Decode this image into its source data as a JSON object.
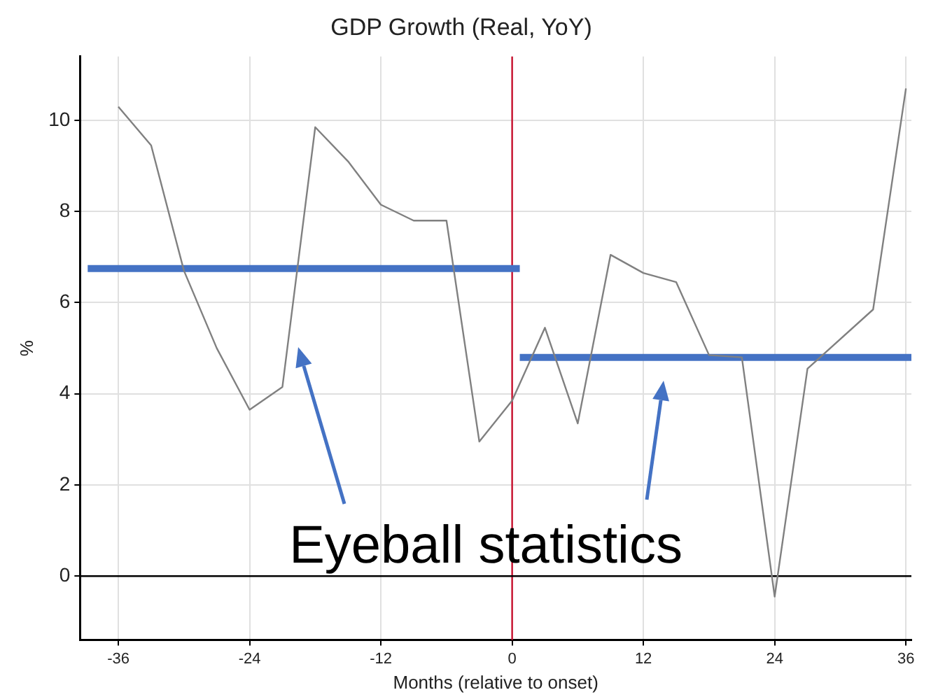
{
  "chart_data": {
    "type": "line",
    "title": "GDP Growth (Real, YoY)",
    "xlabel": "Months (relative to onset)",
    "ylabel": "%",
    "xlim": [
      -39.5,
      36.5
    ],
    "xticks": [
      -36,
      -24,
      -12,
      0,
      12,
      24,
      36
    ],
    "ylim": [
      -1.4,
      11.4
    ],
    "yticks": [
      0,
      2,
      4,
      6,
      8,
      10
    ],
    "series": [
      {
        "color": "#808080",
        "x": [
          -36,
          -33,
          -30,
          -27,
          -24,
          -21,
          -18,
          -15,
          -12,
          -9,
          -6,
          -3,
          0,
          3,
          6,
          9,
          12,
          15,
          18,
          21,
          24,
          27,
          33,
          36
        ],
        "values": [
          10.3,
          9.45,
          6.7,
          5.0,
          3.65,
          4.15,
          9.85,
          9.1,
          8.15,
          7.8,
          7.8,
          2.95,
          3.85,
          5.45,
          3.35,
          7.05,
          6.65,
          6.45,
          4.85,
          4.8,
          -0.45,
          4.55,
          5.85,
          10.7
        ]
      },
      {
        "color": "#4472c4",
        "x": [
          -38.8,
          0.7
        ],
        "values": [
          6.75,
          6.75
        ]
      },
      {
        "color": "#4472c4",
        "x": [
          0.7,
          36.5
        ],
        "values": [
          4.8,
          4.8
        ]
      }
    ],
    "ref_lines": [
      {
        "axis": "x",
        "value": 0,
        "color": "#c8102e"
      },
      {
        "axis": "y",
        "value": 0,
        "color": "#000000"
      }
    ],
    "annotations": [
      "Eyeball statistics"
    ],
    "grid": true,
    "legend": false,
    "marker": "none",
    "line_style": "solid"
  }
}
